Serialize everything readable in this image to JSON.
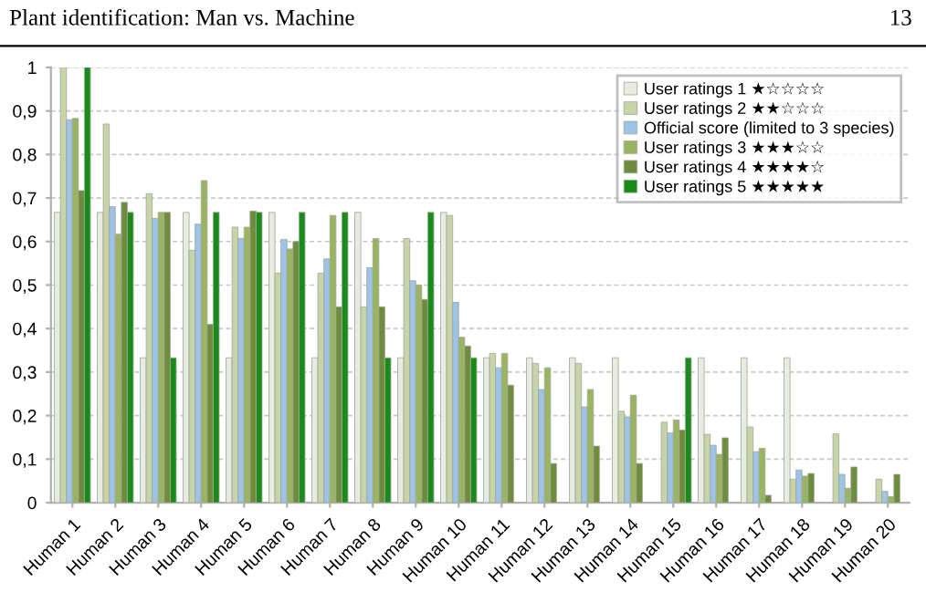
{
  "chart_data": {
    "type": "bar",
    "title": "Plant identification: Man vs. Machine",
    "annotations": [
      "13"
    ],
    "categories": [
      "Human 1",
      "Human 2",
      "Human 3",
      "Human 4",
      "Human 5",
      "Human 6",
      "Human 7",
      "Human 8",
      "Human 9",
      "Human 10",
      "Human 11",
      "Human 12",
      "Human 13",
      "Human 14",
      "Human 15",
      "Human 16",
      "Human 17",
      "Human 18",
      "Human 19",
      "Human 20"
    ],
    "series": [
      {
        "name": "User ratings 1 ★☆☆☆☆",
        "color": "#e8ebe0",
        "values": [
          0.667,
          0.667,
          0.333,
          0.667,
          0.333,
          0.667,
          0.333,
          0.667,
          0.333,
          0.667,
          0.333,
          0.333,
          0.333,
          0.333,
          0,
          0.333,
          0.333,
          0.333,
          0,
          0
        ]
      },
      {
        "name": "User ratings 2 ★★☆☆☆",
        "color": "#c8d4a8",
        "values": [
          1.0,
          0.87,
          0.71,
          0.58,
          0.633,
          0.527,
          0.527,
          0.45,
          0.607,
          0.66,
          0.343,
          0.32,
          0.32,
          0.21,
          0.185,
          0.157,
          0.174,
          0.054,
          0.158,
          0.054
        ]
      },
      {
        "name": "Official score (limited to 3 species)",
        "color": "#9dc3e6",
        "values": [
          0.88,
          0.68,
          0.653,
          0.64,
          0.607,
          0.605,
          0.56,
          0.54,
          0.51,
          0.46,
          0.31,
          0.26,
          0.22,
          0.197,
          0.16,
          0.132,
          0.117,
          0.075,
          0.065,
          0.026
        ]
      },
      {
        "name": "User ratings 3 ★★★☆☆",
        "color": "#9bb462",
        "values": [
          0.883,
          0.617,
          0.667,
          0.74,
          0.633,
          0.583,
          0.66,
          0.607,
          0.5,
          0.38,
          0.343,
          0.31,
          0.26,
          0.247,
          0.19,
          0.111,
          0.125,
          0.061,
          0.033,
          0.014
        ]
      },
      {
        "name": "User ratings 4 ★★★★☆",
        "color": "#6e8c3c",
        "values": [
          0.717,
          0.69,
          0.667,
          0.41,
          0.67,
          0.6,
          0.45,
          0.45,
          0.467,
          0.36,
          0.27,
          0.09,
          0.13,
          0.09,
          0.167,
          0.149,
          0.017,
          0.067,
          0.082,
          0.065
        ]
      },
      {
        "name": "User ratings 5 ★★★★★",
        "color": "#1a8a1a",
        "values": [
          1.0,
          0.667,
          0.333,
          0.667,
          0.667,
          0.667,
          0.667,
          0.333,
          0.667,
          0.333,
          0,
          0,
          0,
          0,
          0.333,
          0,
          0,
          0,
          0,
          0
        ]
      }
    ],
    "ylim": [
      0,
      1
    ],
    "yticks": [
      0,
      {
        "value": 0.1,
        "label": "0,1"
      },
      {
        "value": 0.2,
        "label": "0,2"
      },
      {
        "value": 0.3,
        "label": "0,3"
      },
      {
        "value": 0.4,
        "label": "0,4"
      },
      {
        "value": 0.5,
        "label": "0,5"
      },
      {
        "value": 0.6,
        "label": "0,6"
      },
      {
        "value": 0.7,
        "label": "0,7"
      },
      {
        "value": 0.8,
        "label": "0,8"
      },
      {
        "value": 0.9,
        "label": "0,9"
      },
      1
    ],
    "grid": "y",
    "legend": "top right"
  }
}
